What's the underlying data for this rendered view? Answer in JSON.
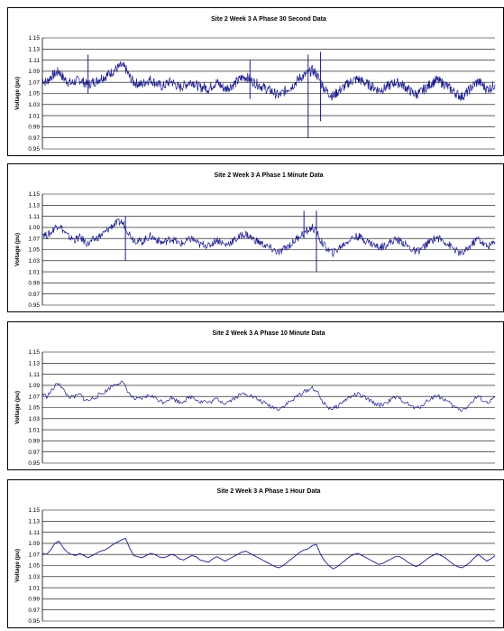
{
  "style": {
    "line_color": "#1a1a8c",
    "grid_color": "#000000",
    "border_color": "#000000"
  },
  "chart_data": [
    {
      "type": "line",
      "title": "Site 2 Week 3 A Phase 30 Second Data",
      "xlabel": "",
      "ylabel": "Voltage (pu)",
      "ylim": [
        0.95,
        1.15
      ],
      "yticks": [
        "1.15",
        "1.13",
        "1.11",
        "1.09",
        "1.07",
        "1.05",
        "1.03",
        "1.01",
        "0.99",
        "0.97",
        "0.95"
      ],
      "grid": true,
      "legend": "none",
      "series": [
        {
          "resolution": "30s",
          "values": [
            1.075,
            1.07,
            1.08,
            1.085,
            1.09,
            1.078,
            1.072,
            1.068,
            1.072,
            1.075,
            1.07,
            1.065,
            1.07,
            1.072,
            1.078,
            1.08,
            1.085,
            1.09,
            1.095,
            1.1,
            1.095,
            1.08,
            1.07,
            1.068,
            1.066,
            1.072,
            1.075,
            1.07,
            1.066,
            1.062,
            1.068,
            1.072,
            1.066,
            1.06,
            1.064,
            1.068,
            1.072,
            1.066,
            1.06,
            1.062,
            1.058,
            1.065,
            1.07,
            1.064,
            1.058,
            1.062,
            1.066,
            1.072,
            1.078,
            1.08,
            1.075,
            1.07,
            1.066,
            1.062,
            1.058,
            1.055,
            1.05,
            1.046,
            1.052,
            1.058,
            1.062,
            1.07,
            1.078,
            1.082,
            1.086,
            1.092,
            1.085,
            1.07,
            1.058,
            1.05,
            1.045,
            1.052,
            1.058,
            1.064,
            1.07,
            1.074,
            1.076,
            1.072,
            1.068,
            1.064,
            1.06,
            1.056,
            1.058,
            1.062,
            1.066,
            1.07,
            1.068,
            1.064,
            1.058,
            1.052,
            1.048,
            1.052,
            1.058,
            1.064,
            1.07,
            1.074,
            1.07,
            1.066,
            1.06,
            1.054,
            1.048,
            1.044,
            1.05,
            1.058,
            1.066,
            1.072,
            1.065,
            1.058,
            1.06,
            1.066
          ],
          "spikes": [
            {
              "i": 11,
              "high": 1.12,
              "low": 1.05
            },
            {
              "i": 50,
              "high": 1.11,
              "low": 1.04
            },
            {
              "i": 64,
              "high": 1.12,
              "low": 0.97
            },
            {
              "i": 67,
              "high": 1.125,
              "low": 1.0
            }
          ]
        }
      ]
    },
    {
      "type": "line",
      "title": "Site 2 Week 3 A Phase 1 Minute Data",
      "xlabel": "",
      "ylabel": "Voltage (pu)",
      "ylim": [
        0.95,
        1.15
      ],
      "yticks": [
        "1.15",
        "1.13",
        "1.11",
        "1.09",
        "1.07",
        "1.05",
        "1.03",
        "1.01",
        "0.99",
        "0.97",
        "0.95"
      ],
      "grid": true,
      "legend": "none",
      "series": [
        {
          "resolution": "1min",
          "values": [
            1.08,
            1.075,
            1.08,
            1.09,
            1.095,
            1.085,
            1.075,
            1.07,
            1.068,
            1.072,
            1.066,
            1.06,
            1.066,
            1.07,
            1.075,
            1.08,
            1.088,
            1.094,
            1.098,
            1.1,
            1.092,
            1.078,
            1.068,
            1.066,
            1.064,
            1.07,
            1.074,
            1.07,
            1.066,
            1.062,
            1.066,
            1.07,
            1.066,
            1.06,
            1.062,
            1.066,
            1.07,
            1.064,
            1.058,
            1.06,
            1.056,
            1.062,
            1.068,
            1.064,
            1.058,
            1.062,
            1.066,
            1.07,
            1.076,
            1.078,
            1.073,
            1.068,
            1.064,
            1.06,
            1.056,
            1.052,
            1.048,
            1.044,
            1.05,
            1.056,
            1.06,
            1.068,
            1.075,
            1.08,
            1.084,
            1.09,
            1.082,
            1.066,
            1.056,
            1.048,
            1.044,
            1.05,
            1.056,
            1.062,
            1.068,
            1.072,
            1.074,
            1.07,
            1.066,
            1.062,
            1.058,
            1.054,
            1.056,
            1.06,
            1.064,
            1.068,
            1.066,
            1.062,
            1.056,
            1.05,
            1.046,
            1.05,
            1.056,
            1.062,
            1.068,
            1.072,
            1.068,
            1.064,
            1.058,
            1.052,
            1.046,
            1.042,
            1.048,
            1.056,
            1.064,
            1.07,
            1.062,
            1.056,
            1.058,
            1.064
          ],
          "spikes": [
            {
              "i": 20,
              "high": 1.11,
              "low": 1.03
            },
            {
              "i": 63,
              "high": 1.12,
              "low": 1.07
            },
            {
              "i": 66,
              "high": 1.12,
              "low": 1.01
            }
          ]
        }
      ]
    },
    {
      "type": "line",
      "title": "Site 2 Week 3 A Phase 10 Minute Data",
      "xlabel": "",
      "ylabel": "Voltage (pu)",
      "ylim": [
        0.95,
        1.15
      ],
      "yticks": [
        "1.15",
        "1.13",
        "1.11",
        "1.09",
        "1.07",
        "1.05",
        "1.03",
        "1.01",
        "0.99",
        "0.97",
        "0.95"
      ],
      "grid": true,
      "legend": "none",
      "series": [
        {
          "resolution": "10min",
          "values": [
            1.075,
            1.07,
            1.078,
            1.088,
            1.096,
            1.082,
            1.072,
            1.068,
            1.07,
            1.074,
            1.066,
            1.062,
            1.066,
            1.07,
            1.074,
            1.078,
            1.084,
            1.09,
            1.094,
            1.096,
            1.088,
            1.074,
            1.066,
            1.064,
            1.066,
            1.07,
            1.072,
            1.068,
            1.064,
            1.06,
            1.064,
            1.068,
            1.064,
            1.06,
            1.062,
            1.066,
            1.07,
            1.066,
            1.06,
            1.062,
            1.058,
            1.062,
            1.066,
            1.062,
            1.058,
            1.062,
            1.066,
            1.07,
            1.074,
            1.076,
            1.072,
            1.068,
            1.064,
            1.06,
            1.056,
            1.052,
            1.05,
            1.048,
            1.052,
            1.058,
            1.062,
            1.068,
            1.074,
            1.078,
            1.082,
            1.086,
            1.08,
            1.066,
            1.056,
            1.05,
            1.048,
            1.052,
            1.058,
            1.064,
            1.068,
            1.072,
            1.074,
            1.07,
            1.066,
            1.062,
            1.058,
            1.054,
            1.056,
            1.06,
            1.064,
            1.068,
            1.066,
            1.062,
            1.056,
            1.052,
            1.048,
            1.052,
            1.058,
            1.064,
            1.068,
            1.072,
            1.068,
            1.064,
            1.058,
            1.052,
            1.048,
            1.046,
            1.05,
            1.056,
            1.064,
            1.07,
            1.064,
            1.058,
            1.062,
            1.068
          ]
        }
      ]
    },
    {
      "type": "line",
      "title": "Site 2 Week 3 A Phase 1 Hour Data",
      "xlabel": "",
      "ylabel": "Voltage (pu)",
      "ylim": [
        0.95,
        1.15
      ],
      "yticks": [
        "1.15",
        "1.13",
        "1.11",
        "1.09",
        "1.07",
        "1.05",
        "1.03",
        "1.01",
        "0.99",
        "0.97",
        "0.95"
      ],
      "grid": true,
      "legend": "none",
      "series": [
        {
          "resolution": "1h",
          "values": [
            1.072,
            1.07,
            1.078,
            1.09,
            1.094,
            1.082,
            1.074,
            1.07,
            1.068,
            1.072,
            1.068,
            1.064,
            1.068,
            1.072,
            1.076,
            1.078,
            1.082,
            1.088,
            1.092,
            1.096,
            1.099,
            1.082,
            1.068,
            1.066,
            1.064,
            1.068,
            1.072,
            1.07,
            1.066,
            1.064,
            1.066,
            1.07,
            1.068,
            1.062,
            1.06,
            1.064,
            1.068,
            1.066,
            1.06,
            1.058,
            1.056,
            1.062,
            1.066,
            1.062,
            1.058,
            1.062,
            1.066,
            1.07,
            1.074,
            1.076,
            1.072,
            1.068,
            1.064,
            1.06,
            1.056,
            1.052,
            1.048,
            1.046,
            1.05,
            1.056,
            1.062,
            1.068,
            1.074,
            1.078,
            1.08,
            1.086,
            1.088,
            1.07,
            1.058,
            1.05,
            1.044,
            1.048,
            1.054,
            1.06,
            1.066,
            1.07,
            1.072,
            1.068,
            1.064,
            1.06,
            1.056,
            1.052,
            1.054,
            1.058,
            1.062,
            1.066,
            1.066,
            1.062,
            1.056,
            1.052,
            1.048,
            1.052,
            1.058,
            1.064,
            1.068,
            1.072,
            1.068,
            1.064,
            1.058,
            1.052,
            1.048,
            1.046,
            1.05,
            1.056,
            1.064,
            1.07,
            1.064,
            1.058,
            1.062,
            1.068
          ]
        }
      ]
    }
  ]
}
